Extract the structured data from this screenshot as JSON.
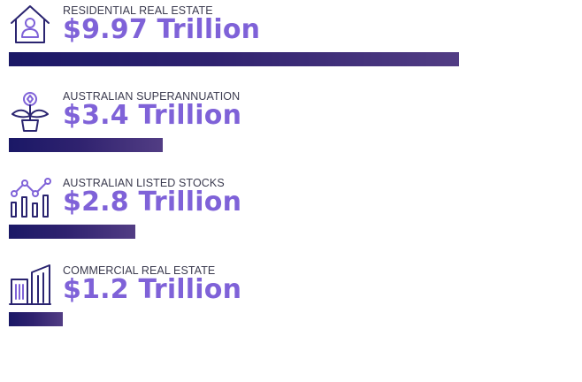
{
  "colors": {
    "icon_stroke": "#2a2470",
    "icon_accent": "#7f62d8",
    "value_text": "#7f62d8",
    "label_text": "#3b3b4f",
    "bar_start": "#1a1866",
    "bar_end": "#523d84"
  },
  "chart_data": {
    "type": "bar",
    "orientation": "horizontal",
    "unit": "Trillion",
    "items": [
      {
        "label": "RESIDENTIAL REAL ESTATE",
        "value_text": "$9.97 Trillion",
        "value": 9.97,
        "icon": "house-person-icon"
      },
      {
        "label": "AUSTRALIAN SUPERANNUATION",
        "value_text": "$3.4 Trillion",
        "value": 3.4,
        "icon": "potted-plant-coin-icon"
      },
      {
        "label": "AUSTRALIAN LISTED STOCKS",
        "value_text": "$2.8 Trillion",
        "value": 2.8,
        "icon": "bar-line-chart-icon"
      },
      {
        "label": "COMMERCIAL REAL ESTATE",
        "value_text": "$1.2 Trillion",
        "value": 1.2,
        "icon": "office-buildings-icon"
      }
    ]
  }
}
